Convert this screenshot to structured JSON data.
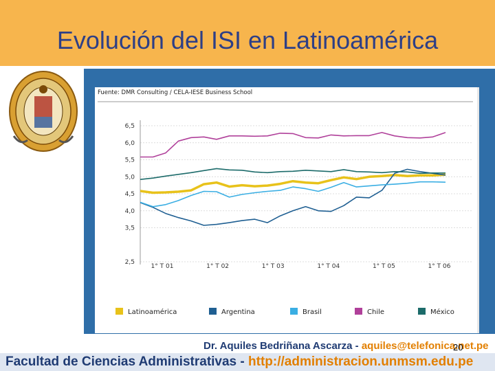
{
  "slide": {
    "title": "Evolución del ISI en Latinoamérica",
    "page_number": "20"
  },
  "footer": {
    "author_name": "Dr. Aquiles Bedriñana Ascarza - ",
    "author_email": "aquiles@telefonica.net.pe",
    "faculty": "Facultad de Ciencias Administrativas - ",
    "url": "http://administracion.unmsm.edu.pe"
  },
  "colors": {
    "title_bar": "#f7b54d",
    "title_text": "#2e3f86",
    "panel": "#2f6ea8"
  },
  "seal": {
    "icon": "university-seal-icon"
  },
  "chart_data": {
    "type": "line",
    "source": "Fuente: DMR Consulting / CELA-IESE Business School",
    "ylim": [
      2.5,
      6.5
    ],
    "yticks": [
      "6,5",
      "6,0",
      "5,5",
      "5,0",
      "4,5",
      "4,0",
      "3,5",
      "2,5"
    ],
    "x_labels": [
      "1° T 01",
      "1° T 02",
      "1° T 03",
      "1° T 04",
      "1° T 05",
      "1° T 06"
    ],
    "grid": true,
    "legend_position": "bottom",
    "series": [
      {
        "name": "Latinoamérica",
        "color": "#e8c21a",
        "width": 3.5,
        "values": [
          4.58,
          4.53,
          4.54,
          4.56,
          4.6,
          4.78,
          4.83,
          4.71,
          4.75,
          4.72,
          4.74,
          4.79,
          4.87,
          4.83,
          4.81,
          4.9,
          4.98,
          4.93,
          5.0,
          5.02,
          5.05,
          5.02,
          5.04,
          5.04,
          5.06
        ]
      },
      {
        "name": "Argentina",
        "color": "#1f5f92",
        "width": 1.6,
        "values": [
          4.24,
          4.1,
          3.92,
          3.8,
          3.7,
          3.57,
          3.6,
          3.65,
          3.71,
          3.75,
          3.65,
          3.85,
          4.0,
          4.12,
          4.0,
          3.98,
          4.15,
          4.4,
          4.38,
          4.6,
          5.1,
          5.22,
          5.15,
          5.1,
          5.05
        ]
      },
      {
        "name": "Brasil",
        "color": "#3aaee3",
        "width": 1.6,
        "values": [
          4.25,
          4.12,
          4.18,
          4.3,
          4.45,
          4.57,
          4.56,
          4.4,
          4.48,
          4.53,
          4.57,
          4.6,
          4.7,
          4.65,
          4.57,
          4.69,
          4.83,
          4.7,
          4.73,
          4.76,
          4.78,
          4.81,
          4.85,
          4.85,
          4.84
        ]
      },
      {
        "name": "Chile",
        "color": "#b0409a",
        "width": 1.6,
        "values": [
          5.58,
          5.58,
          5.7,
          6.05,
          6.15,
          6.17,
          6.1,
          6.2,
          6.2,
          6.19,
          6.2,
          6.28,
          6.27,
          6.15,
          6.14,
          6.23,
          6.2,
          6.21,
          6.21,
          6.3,
          6.2,
          6.15,
          6.14,
          6.17,
          6.3
        ]
      },
      {
        "name": "México",
        "color": "#1c6b6a",
        "width": 1.6,
        "values": [
          4.92,
          4.96,
          5.02,
          5.07,
          5.12,
          5.18,
          5.24,
          5.2,
          5.19,
          5.14,
          5.12,
          5.15,
          5.16,
          5.19,
          5.17,
          5.15,
          5.21,
          5.15,
          5.14,
          5.12,
          5.15,
          5.14,
          5.1,
          5.11,
          5.11
        ]
      }
    ]
  }
}
